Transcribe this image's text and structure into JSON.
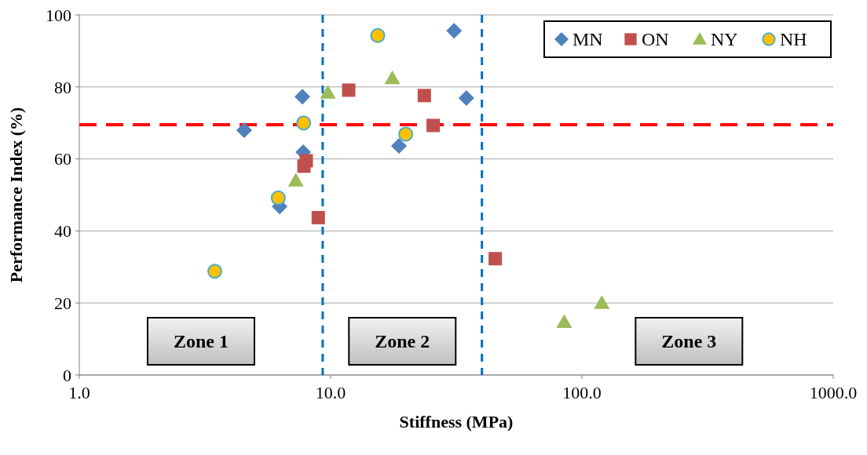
{
  "chart_data": {
    "type": "scatter",
    "xlabel": "Stiffness (MPa)",
    "ylabel": "Performance Index (%)",
    "log": "x",
    "grid": "y",
    "legend": "top right",
    "xlim": [
      1,
      1000
    ],
    "xticks": [
      {
        "value": 1,
        "label": "1.0"
      },
      {
        "value": 10,
        "label": "10.0"
      },
      {
        "value": 100,
        "label": "100.0"
      },
      {
        "value": 1000,
        "label": "1000.0"
      }
    ],
    "ylim": [
      0,
      100
    ],
    "yticks": [
      0,
      20,
      40,
      60,
      80,
      100
    ],
    "series": [
      {
        "name": "MN",
        "color": "#4f81bd",
        "marker": "diamond",
        "x": [
          4.53,
          7.72,
          31.0,
          34.7,
          18.7,
          7.78,
          6.27
        ],
        "values": [
          68.0,
          77.3,
          95.6,
          76.9,
          63.6,
          61.9,
          46.8
        ]
      },
      {
        "name": "ON",
        "color": "#c0504d",
        "marker": "square",
        "x": [
          11.8,
          23.6,
          25.6,
          8.0,
          7.83,
          8.93,
          45.2
        ],
        "values": [
          79.1,
          77.6,
          69.3,
          59.5,
          58.0,
          43.7,
          32.3
        ]
      },
      {
        "name": "NY",
        "color": "#9bbb59",
        "marker": "triangle",
        "x": [
          9.75,
          17.6,
          7.27,
          85,
          120
        ],
        "values": [
          78.4,
          82.4,
          54.0,
          14.7,
          20.0
        ]
      },
      {
        "name": "NH",
        "color": "#ffc000",
        "marker": "circle",
        "x": [
          15.4,
          7.81,
          19.9,
          6.19,
          3.46
        ],
        "values": [
          94.3,
          70.0,
          66.9,
          49.2,
          28.8
        ]
      }
    ],
    "ref_lines": [
      {
        "axis": "y",
        "value": 69.5,
        "color": "#ff0000",
        "line_style": "dashed"
      },
      {
        "axis": "x",
        "value": 9.3,
        "color": "#0070c0",
        "line_style": "dashed"
      },
      {
        "axis": "x",
        "value": 40,
        "color": "#0070c0",
        "line_style": "dashed"
      }
    ],
    "annotations": [
      "Zone 1",
      "Zone 2",
      "Zone 3"
    ]
  }
}
